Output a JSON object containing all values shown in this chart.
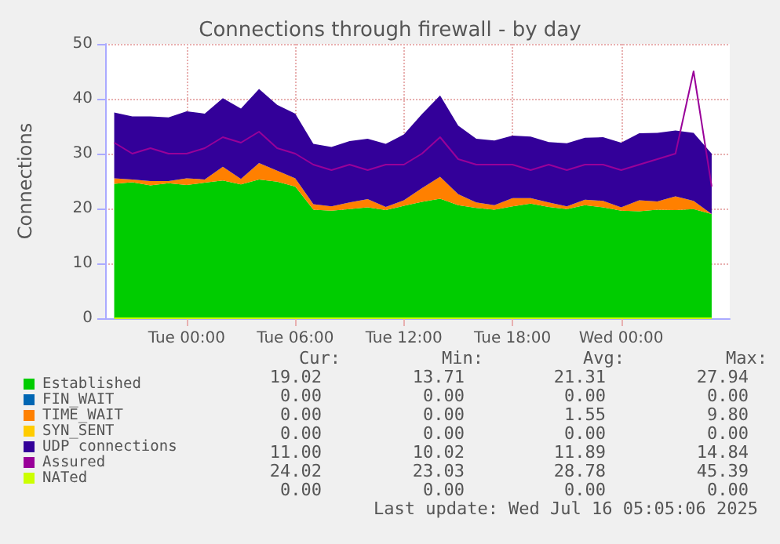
{
  "chart_data": {
    "type": "area",
    "title": "Connections through firewall - by day",
    "ylabel": "Connections",
    "x": [
      "2025-07-14T20:00",
      "2025-07-14T21:00",
      "2025-07-14T22:00",
      "2025-07-14T23:00",
      "2025-07-15T00:00",
      "2025-07-15T01:00",
      "2025-07-15T02:00",
      "2025-07-15T03:00",
      "2025-07-15T04:00",
      "2025-07-15T05:00",
      "2025-07-15T06:00",
      "2025-07-15T07:00",
      "2025-07-15T08:00",
      "2025-07-15T09:00",
      "2025-07-15T10:00",
      "2025-07-15T11:00",
      "2025-07-15T12:00",
      "2025-07-15T13:00",
      "2025-07-15T14:00",
      "2025-07-15T15:00",
      "2025-07-15T16:00",
      "2025-07-15T17:00",
      "2025-07-15T18:00",
      "2025-07-15T19:00",
      "2025-07-15T20:00",
      "2025-07-15T21:00",
      "2025-07-15T22:00",
      "2025-07-15T23:00",
      "2025-07-16T00:00",
      "2025-07-16T01:00",
      "2025-07-16T02:00",
      "2025-07-16T03:00",
      "2025-07-16T04:00",
      "2025-07-16T05:00"
    ],
    "series": [
      {
        "name": "Established",
        "color": "#00cc00",
        "values": [
          24.5,
          24.8,
          24.2,
          24.6,
          24.3,
          24.7,
          25.1,
          24.4,
          25.3,
          24.9,
          24.0,
          19.8,
          19.6,
          19.9,
          20.2,
          19.7,
          20.5,
          21.2,
          21.8,
          20.6,
          20.1,
          19.8,
          20.4,
          20.9,
          20.3,
          19.9,
          20.6,
          20.2,
          19.6,
          19.5,
          19.8,
          19.7,
          19.9,
          19
        ]
      },
      {
        "name": "FIN_WAIT",
        "color": "#0066b3",
        "values": [
          null,
          null,
          null,
          null,
          null,
          null,
          null,
          null,
          null,
          null,
          null,
          null,
          null,
          null,
          null,
          null,
          null,
          null,
          null,
          null,
          null,
          null,
          null,
          null,
          null,
          null,
          null,
          null,
          null,
          null,
          null,
          null,
          null,
          null
        ]
      },
      {
        "name": "TIME_WAIT",
        "color": "#ff8000",
        "values": [
          1.0,
          0.5,
          0.8,
          0.4,
          1.2,
          0.6,
          2.5,
          1.0,
          3.0,
          2.0,
          1.5,
          1.0,
          0.8,
          1.2,
          1.5,
          0.6,
          1.0,
          2.5,
          4.0,
          2.0,
          1.0,
          0.8,
          1.5,
          1.0,
          0.8,
          0.5,
          1.0,
          1.2,
          0.6,
          2.0,
          1.5,
          2.5,
          1.5,
          0
        ]
      },
      {
        "name": "SYN_SENT",
        "color": "#ffcc00",
        "values": [
          null,
          null,
          null,
          null,
          null,
          null,
          null,
          null,
          null,
          null,
          null,
          null,
          null,
          null,
          null,
          null,
          null,
          null,
          null,
          null,
          null,
          null,
          null,
          null,
          null,
          null,
          null,
          null,
          null,
          null,
          null,
          null,
          null,
          null
        ]
      },
      {
        "name": "UDP connections",
        "color": "#330099",
        "values": [
          12.0,
          11.5,
          11.8,
          11.6,
          12.2,
          12.0,
          12.5,
          12.8,
          13.5,
          12.0,
          11.8,
          11.0,
          10.8,
          11.2,
          11.0,
          11.5,
          12.0,
          13.5,
          14.8,
          12.5,
          11.6,
          11.8,
          11.4,
          11.2,
          11.0,
          11.5,
          11.3,
          11.6,
          11.8,
          12.2,
          12.5,
          12.0,
          12.4,
          11.0
        ]
      },
      {
        "name": "Assured",
        "type": "line",
        "color": "#990099",
        "values": [
          32,
          30,
          31,
          30,
          30,
          31,
          33,
          32,
          34,
          31,
          30,
          28,
          27,
          28,
          27,
          28,
          28,
          30,
          33,
          29,
          28,
          28,
          28,
          27,
          28,
          27,
          28,
          28,
          27,
          28,
          29,
          30,
          45,
          24
        ]
      },
      {
        "name": "NATed",
        "type": "line",
        "color": "#ccff00",
        "values": [
          0,
          0,
          0,
          0,
          0,
          0,
          0,
          0,
          0,
          0,
          0,
          0,
          0,
          0,
          0,
          0,
          0,
          0,
          0,
          0,
          0,
          0,
          0,
          0,
          0,
          0,
          0,
          0,
          0,
          0,
          0,
          0,
          0,
          0
        ]
      }
    ],
    "stacked": true,
    "xlim": [
      "2025-07-14T19:30",
      "2025-07-16T06:00"
    ],
    "xticks": [
      {
        "value": "2025-07-15T00:00",
        "label": "Tue 00:00"
      },
      {
        "value": "2025-07-15T06:00",
        "label": "Tue 06:00"
      },
      {
        "value": "2025-07-15T12:00",
        "label": "Tue 12:00"
      },
      {
        "value": "2025-07-15T18:00",
        "label": "Tue 18:00"
      },
      {
        "value": "2025-07-16T00:00",
        "label": "Wed 00:00"
      }
    ],
    "ylim": [
      0,
      50
    ],
    "yticks": [
      0,
      10,
      20,
      30,
      40,
      50
    ],
    "grid": true,
    "legend": "bottom",
    "marker": "none",
    "annotations": [
      "Cur:",
      "Min:",
      "Avg:",
      "Max:",
      "19.02",
      "13.71",
      "21.31",
      "27.94",
      "0.00",
      "0.00",
      "0.00",
      "0.00",
      "0.00",
      "0.00",
      "1.55",
      "9.80",
      "0.00",
      "0.00",
      "0.00",
      "0.00",
      "11.00",
      "10.02",
      "11.89",
      "14.84",
      "24.02",
      "23.03",
      "28.78",
      "45.39",
      "0.00",
      "0.00",
      "0.00",
      "0.00",
      "Last update: Wed Jul 16 05:05:06 2025"
    ]
  }
}
